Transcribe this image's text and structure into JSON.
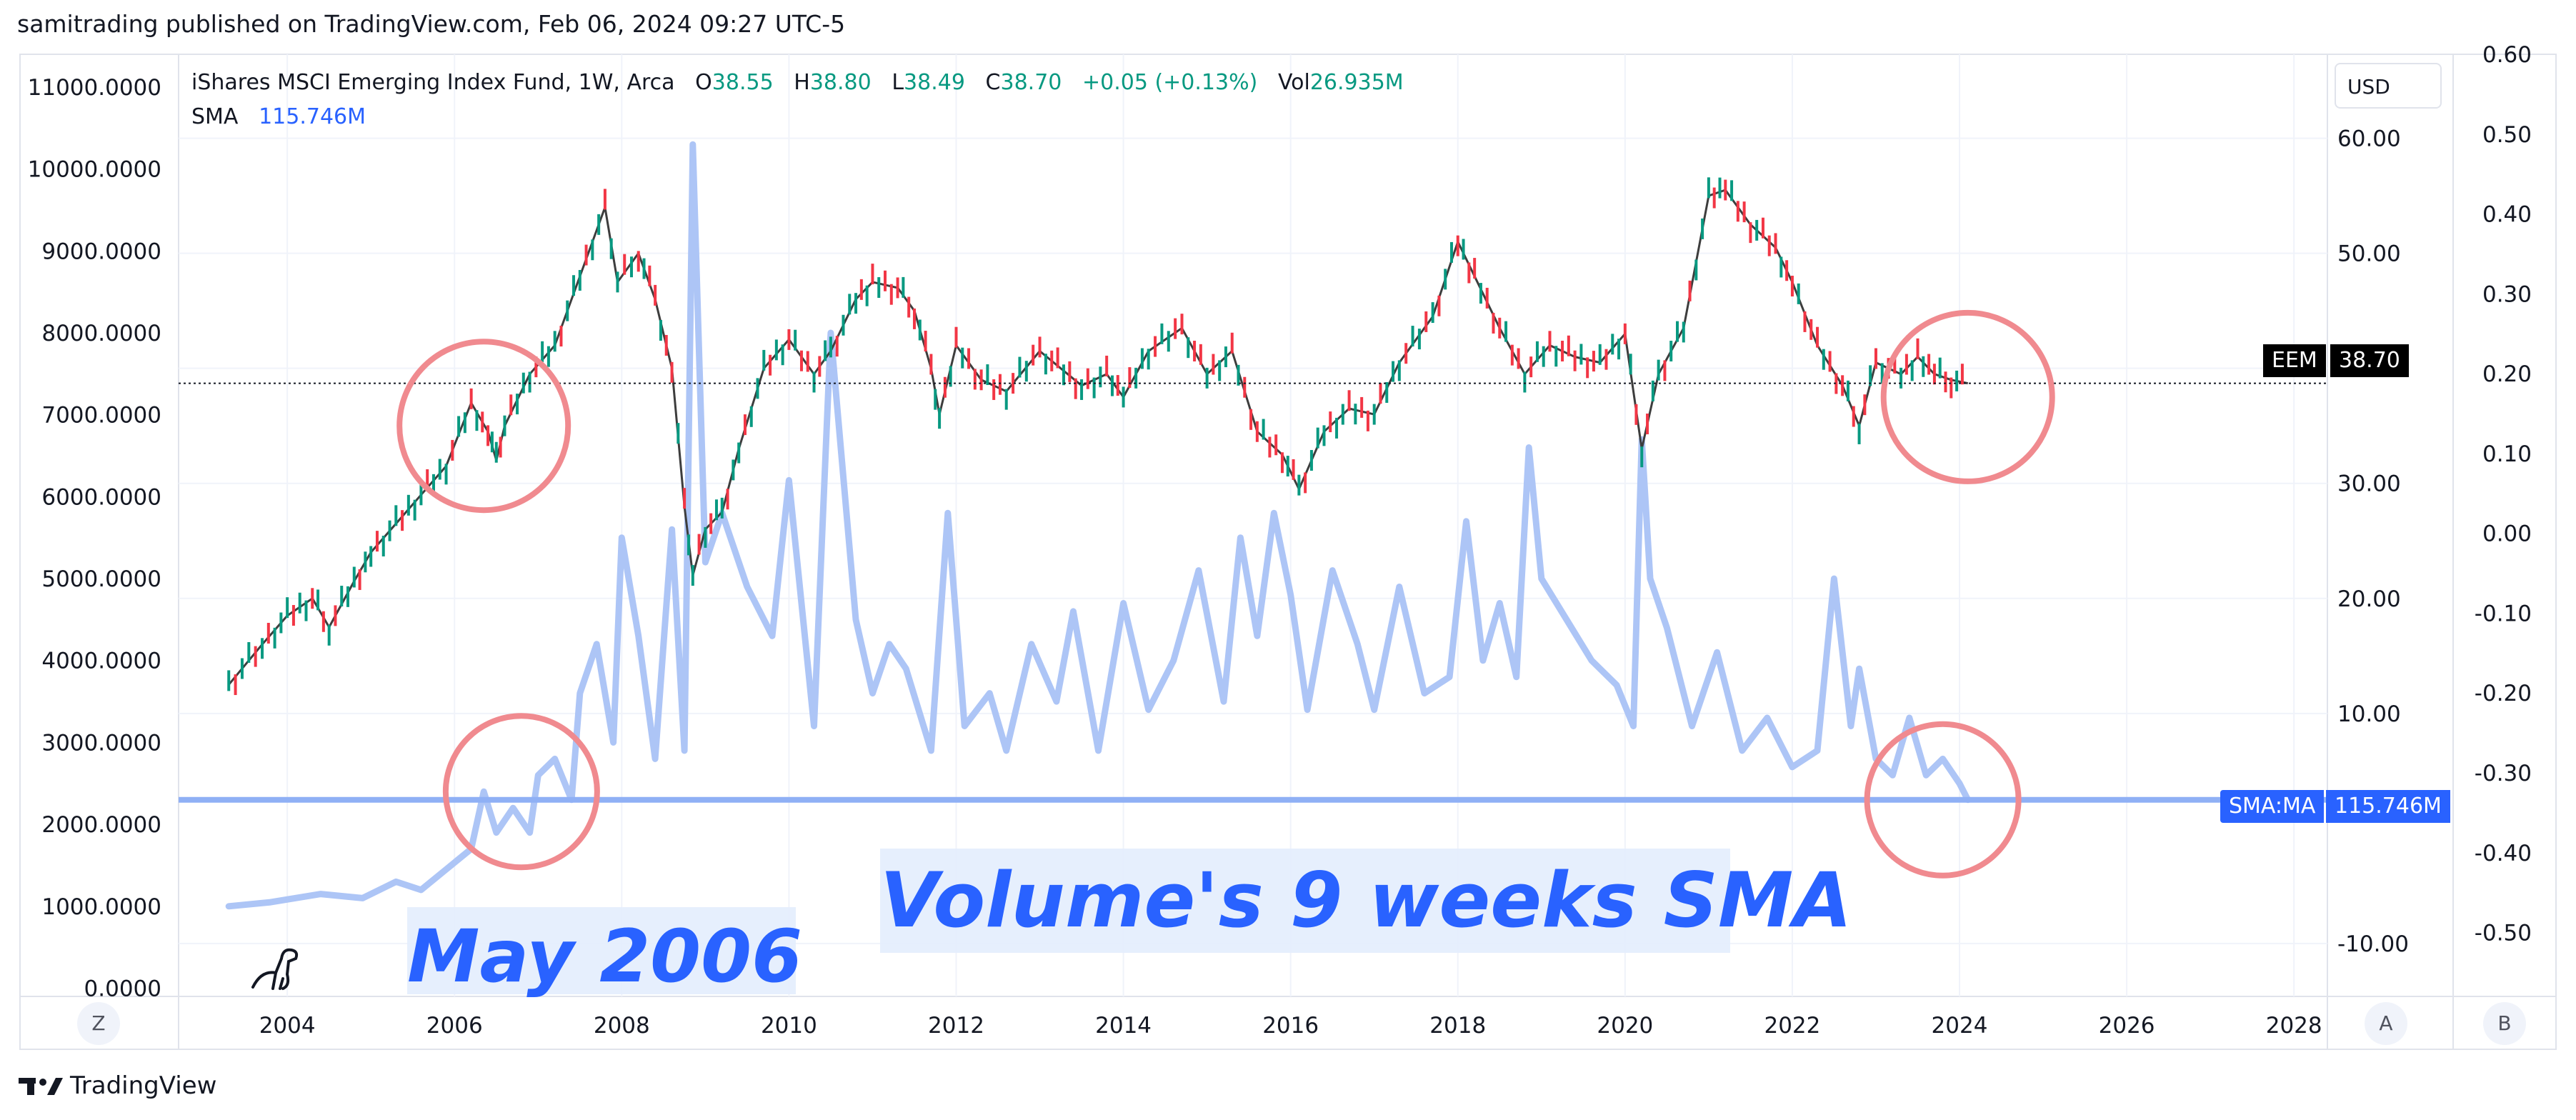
{
  "header": {
    "published": "samitrading published on TradingView.com, Feb 06, 2024 09:27 UTC-5"
  },
  "legend": {
    "symbol": "iShares MSCI Emerging Index Fund, 1W, Arca",
    "o_label": "O",
    "o_val": "38.55",
    "h_label": "H",
    "h_val": "38.80",
    "l_label": "L",
    "l_val": "38.49",
    "c_label": "C",
    "c_val": "38.70",
    "change": "+0.05 (+0.13%)",
    "vol_label": "Vol",
    "vol_val": "26.935M",
    "sma_label": "SMA",
    "sma_val": "115.746M"
  },
  "currency_button": "USD",
  "annotations": {
    "sma_text": "Volume's 9 weeks SMA",
    "may_text": "May 2006"
  },
  "price_tag": {
    "name": "EEM",
    "value": "38.70"
  },
  "sma_tag": {
    "name": "SMA:MA",
    "value": "115.746M"
  },
  "scale_buttons": {
    "left": "Z",
    "auto": "A",
    "log": "B"
  },
  "footer": {
    "brand": "TradingView"
  },
  "colors": {
    "up": "#089981",
    "down": "#f23645",
    "sma_line": "#adc5f6",
    "sma_flat": "#2962ff",
    "circle": "#f08a8f",
    "grid": "#f0f3fa",
    "price_line": "#131722"
  },
  "chart_data": {
    "type": "line",
    "title": "iShares MSCI Emerging Index Fund, 1W, Arca",
    "x_axis": {
      "ticks": [
        "2004",
        "2006",
        "2008",
        "2010",
        "2012",
        "2014",
        "2016",
        "2018",
        "2020",
        "2022",
        "2024",
        "2026",
        "2028"
      ],
      "range": [
        2002.7,
        2028.4
      ]
    },
    "left_axis": {
      "ticks": [
        "11000.0000",
        "10000.0000",
        "9000.0000",
        "8000.0000",
        "7000.0000",
        "6000.0000",
        "5000.0000",
        "4000.0000",
        "3000.0000",
        "2000.0000",
        "1000.0000",
        "0.0000"
      ],
      "range": [
        -100,
        11400
      ]
    },
    "price_axis": {
      "ticks": [
        "60.00",
        "50.00",
        "40.00",
        "30.00",
        "20.00",
        "10.00",
        "-10.00"
      ],
      "range": [
        -14.6,
        67.3
      ]
    },
    "right_axis": {
      "ticks": [
        "0.60",
        "0.50",
        "0.40",
        "0.30",
        "0.20",
        "0.10",
        "0.00",
        "-0.10",
        "-0.20",
        "-0.30",
        "-0.40",
        "-0.50"
      ],
      "range": [
        -0.58,
        0.6
      ]
    },
    "series": [
      {
        "name": "EEM",
        "axis": "price",
        "x": [
          2003.3,
          2003.7,
          2004.0,
          2004.3,
          2004.5,
          2004.8,
          2005.0,
          2005.3,
          2005.6,
          2005.9,
          2006.2,
          2006.4,
          2006.5,
          2006.6,
          2006.9,
          2007.2,
          2007.5,
          2007.8,
          2007.95,
          2008.2,
          2008.4,
          2008.6,
          2008.75,
          2008.85,
          2009.0,
          2009.2,
          2009.4,
          2009.7,
          2010.0,
          2010.3,
          2010.5,
          2010.8,
          2011.0,
          2011.3,
          2011.5,
          2011.7,
          2011.8,
          2012.0,
          2012.3,
          2012.6,
          2013.0,
          2013.5,
          2013.8,
          2014.0,
          2014.3,
          2014.7,
          2015.0,
          2015.3,
          2015.6,
          2015.9,
          2016.1,
          2016.4,
          2016.7,
          2017.0,
          2017.3,
          2017.7,
          2018.0,
          2018.2,
          2018.5,
          2018.8,
          2019.1,
          2019.4,
          2019.7,
          2020.0,
          2020.2,
          2020.4,
          2020.7,
          2021.0,
          2021.2,
          2021.5,
          2021.8,
          2022.0,
          2022.3,
          2022.6,
          2022.8,
          2023.0,
          2023.3,
          2023.5,
          2023.7,
          2023.9,
          2024.1
        ],
        "values": [
          12.5,
          16.0,
          18.5,
          20.0,
          17.5,
          21.5,
          24.0,
          26.5,
          29.0,
          31.5,
          37.0,
          34.5,
          32.0,
          35.0,
          39.5,
          42.0,
          48.0,
          54.0,
          47.5,
          50.0,
          46.0,
          40.0,
          28.0,
          22.0,
          26.0,
          27.5,
          33.0,
          40.0,
          42.5,
          39.5,
          41.5,
          46.0,
          47.5,
          47.0,
          45.0,
          40.0,
          36.0,
          42.0,
          39.0,
          38.0,
          41.5,
          38.5,
          39.5,
          37.5,
          41.5,
          43.5,
          39.5,
          41.5,
          34.5,
          32.5,
          29.5,
          34.5,
          36.5,
          36.0,
          40.5,
          44.5,
          51.0,
          48.0,
          43.5,
          39.5,
          42.0,
          41.0,
          40.5,
          43.0,
          33.0,
          39.5,
          43.5,
          55.0,
          55.5,
          52.5,
          50.5,
          47.5,
          42.0,
          38.5,
          35.0,
          40.5,
          39.5,
          41.0,
          39.5,
          39.0,
          38.7
        ]
      },
      {
        "name": "SMA",
        "axis": "left",
        "x": [
          2003.3,
          2003.8,
          2004.4,
          2004.9,
          2005.3,
          2005.6,
          2005.9,
          2006.2,
          2006.35,
          2006.5,
          2006.7,
          2006.9,
          2007.0,
          2007.2,
          2007.4,
          2007.5,
          2007.7,
          2007.9,
          2008.0,
          2008.2,
          2008.4,
          2008.6,
          2008.75,
          2008.85,
          2009.0,
          2009.2,
          2009.5,
          2009.8,
          2010.0,
          2010.3,
          2010.5,
          2010.8,
          2011.0,
          2011.2,
          2011.4,
          2011.7,
          2011.9,
          2012.1,
          2012.4,
          2012.6,
          2012.9,
          2013.2,
          2013.4,
          2013.7,
          2014.0,
          2014.3,
          2014.6,
          2014.9,
          2015.2,
          2015.4,
          2015.6,
          2015.8,
          2016.0,
          2016.2,
          2016.5,
          2016.8,
          2017.0,
          2017.3,
          2017.6,
          2017.9,
          2018.1,
          2018.3,
          2018.5,
          2018.7,
          2018.85,
          2019.0,
          2019.3,
          2019.6,
          2019.9,
          2020.1,
          2020.2,
          2020.3,
          2020.5,
          2020.8,
          2021.1,
          2021.4,
          2021.7,
          2022.0,
          2022.3,
          2022.5,
          2022.7,
          2022.8,
          2023.0,
          2023.2,
          2023.4,
          2023.6,
          2023.8,
          2024.0,
          2024.1
        ],
        "values": [
          1000,
          1050,
          1150,
          1100,
          1300,
          1200,
          1450,
          1700,
          2400,
          1900,
          2200,
          1900,
          2600,
          2800,
          2300,
          3600,
          4200,
          3000,
          5500,
          4300,
          2800,
          5600,
          2900,
          10300,
          5200,
          5800,
          4900,
          4300,
          6200,
          3200,
          8000,
          4500,
          3600,
          4200,
          3900,
          2900,
          5800,
          3200,
          3600,
          2900,
          4200,
          3500,
          4600,
          2900,
          4700,
          3400,
          4000,
          5100,
          3500,
          5500,
          4300,
          5800,
          4800,
          3400,
          5100,
          4200,
          3400,
          4900,
          3600,
          3800,
          5700,
          4000,
          4700,
          3800,
          6600,
          5000,
          4500,
          4000,
          3700,
          3200,
          6700,
          5000,
          4400,
          3200,
          4100,
          2900,
          3300,
          2700,
          2900,
          5000,
          3200,
          3900,
          2800,
          2600,
          3300,
          2600,
          2800,
          2500,
          2300
        ]
      },
      {
        "name": "SMA:MA",
        "axis": "left",
        "x": [
          2002.7,
          2028.4
        ],
        "values": [
          2300,
          2300
        ]
      }
    ],
    "annotations": [
      "Volume's 9 weeks SMA",
      "May 2006"
    ],
    "price_line": 38.7
  }
}
